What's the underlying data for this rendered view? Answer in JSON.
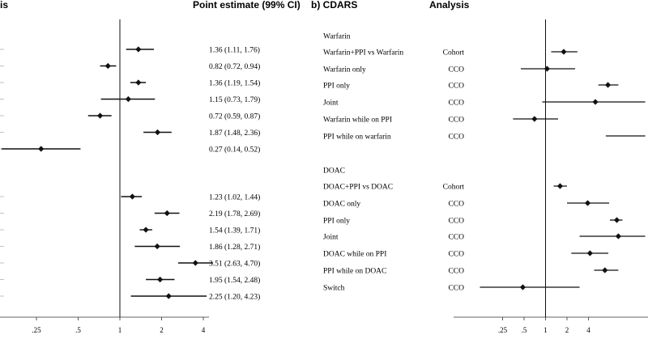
{
  "panel_a": {
    "title_fragment": "is",
    "estimate_header": "Point estimate (99% CI)"
  },
  "panel_b": {
    "title": "b) CDARS",
    "analysis_header": "Analysis"
  },
  "chart_data": [
    {
      "type": "forest",
      "panel": "a",
      "x_scale": "log",
      "reference_line": 1,
      "x_ticks": [
        ".25",
        ".5",
        "1",
        "2",
        "4"
      ],
      "groups": [
        {
          "rows": [
            {
              "estimate": 1.36,
              "lower": 1.11,
              "upper": 1.76,
              "text": "1.36 (1.11, 1.76)"
            },
            {
              "estimate": 0.82,
              "lower": 0.72,
              "upper": 0.94,
              "text": "0.82 (0.72, 0.94)"
            },
            {
              "estimate": 1.36,
              "lower": 1.19,
              "upper": 1.54,
              "text": "1.36 (1.19, 1.54)"
            },
            {
              "estimate": 1.15,
              "lower": 0.73,
              "upper": 1.79,
              "text": "1.15 (0.73, 1.79)"
            },
            {
              "estimate": 0.72,
              "lower": 0.59,
              "upper": 0.87,
              "text": "0.72 (0.59, 0.87)"
            },
            {
              "estimate": 1.87,
              "lower": 1.48,
              "upper": 2.36,
              "text": "1.87 (1.48, 2.36)"
            },
            {
              "estimate": 0.27,
              "lower": 0.14,
              "upper": 0.52,
              "text": "0.27 (0.14, 0.52)"
            }
          ]
        },
        {
          "rows": [
            {
              "estimate": 1.23,
              "lower": 1.02,
              "upper": 1.44,
              "text": "1.23 (1.02, 1.44)"
            },
            {
              "estimate": 2.19,
              "lower": 1.78,
              "upper": 2.69,
              "text": "2.19 (1.78, 2.69)"
            },
            {
              "estimate": 1.54,
              "lower": 1.39,
              "upper": 1.71,
              "text": "1.54 (1.39, 1.71)"
            },
            {
              "estimate": 1.86,
              "lower": 1.28,
              "upper": 2.71,
              "text": "1.86 (1.28, 2.71)"
            },
            {
              "estimate": 3.51,
              "lower": 2.63,
              "upper": 4.7,
              "text": "3.51 (2.63, 4.70)"
            },
            {
              "estimate": 1.95,
              "lower": 1.54,
              "upper": 2.48,
              "text": "1.95 (1.54, 2.48)"
            },
            {
              "estimate": 2.25,
              "lower": 1.2,
              "upper": 4.23,
              "text": "2.25 (1.20, 4.23)"
            }
          ]
        }
      ]
    },
    {
      "type": "forest",
      "panel": "b",
      "x_scale": "log",
      "reference_line": 1,
      "x_ticks": [
        ".25",
        ".5",
        "1",
        "2",
        "4"
      ],
      "groups": [
        {
          "heading": "Warfarin",
          "rows": [
            {
              "label": "Warfarin+PPI vs Warfarin",
              "analysis": "Cohort",
              "estimate": 1.8,
              "lower": 1.2,
              "upper": 2.8
            },
            {
              "label": "Warfarin only",
              "analysis": "CCO",
              "estimate": 1.05,
              "lower": 0.45,
              "upper": 2.6
            },
            {
              "label": "PPI only",
              "analysis": "CCO",
              "estimate": 7.5,
              "lower": 5.5,
              "upper": 10.5
            },
            {
              "label": "Joint",
              "analysis": "CCO",
              "estimate": 5.0,
              "lower": 0.9,
              "upper": 25
            },
            {
              "label": "Warfarin while on PPI",
              "analysis": "CCO",
              "estimate": 0.7,
              "lower": 0.35,
              "upper": 1.5
            },
            {
              "label": "PPI while on warfarin",
              "analysis": "CCO",
              "estimate": null,
              "lower": 7.0,
              "upper": 25
            }
          ]
        },
        {
          "heading": "DOAC",
          "rows": [
            {
              "label": "DOAC+PPI vs DOAC",
              "analysis": "Cohort",
              "estimate": 1.6,
              "lower": 1.3,
              "upper": 2.0
            },
            {
              "label": "DOAC only",
              "analysis": "CCO",
              "estimate": 3.9,
              "lower": 2.0,
              "upper": 7.8
            },
            {
              "label": "PPI only",
              "analysis": "CCO",
              "estimate": 10.0,
              "lower": 8.0,
              "upper": 12
            },
            {
              "label": "Joint",
              "analysis": "CCO",
              "estimate": 10.5,
              "lower": 3.0,
              "upper": 25
            },
            {
              "label": "DOAC while on PPI",
              "analysis": "CCO",
              "estimate": 4.2,
              "lower": 2.3,
              "upper": 7.6
            },
            {
              "label": "PPI while on DOAC",
              "analysis": "CCO",
              "estimate": 6.8,
              "lower": 4.8,
              "upper": 10.5
            },
            {
              "label": "Switch",
              "analysis": "CCO",
              "estimate": 0.48,
              "lower": 0.12,
              "upper": 3.0
            }
          ]
        }
      ]
    }
  ]
}
